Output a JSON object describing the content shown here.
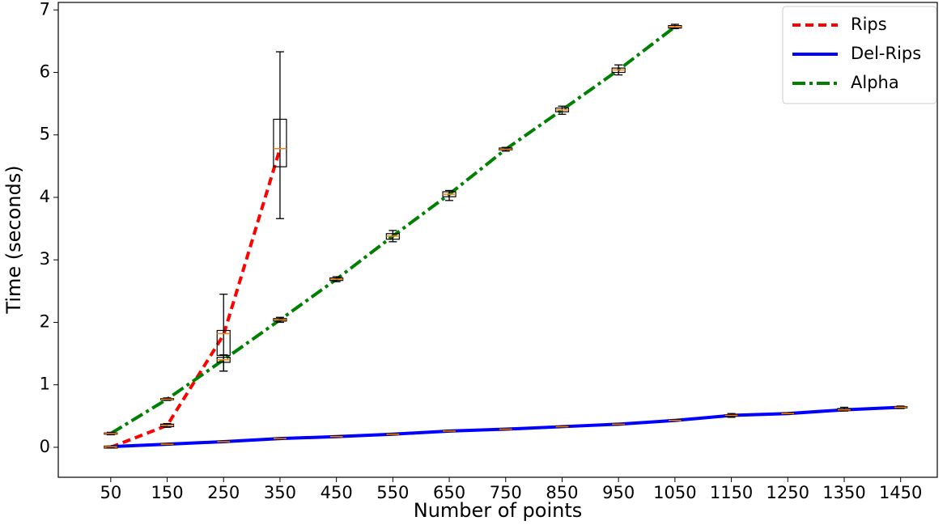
{
  "chart_data": {
    "type": "line",
    "xlabel": "Number of points",
    "ylabel": "Time (seconds)",
    "xlim": [
      -43,
      1515
    ],
    "ylim": [
      -0.48,
      7.12
    ],
    "xticks": [
      50,
      150,
      250,
      350,
      450,
      550,
      650,
      750,
      850,
      950,
      1050,
      1150,
      1250,
      1350,
      1450
    ],
    "yticks": [
      0,
      1,
      2,
      3,
      4,
      5,
      6,
      7
    ],
    "grid": false,
    "legend": "upper right",
    "series": [
      {
        "name": "Rips",
        "color": "#ff0000",
        "dash": "dashed",
        "x": [
          50,
          150,
          250,
          350
        ],
        "values": [
          0.0,
          0.35,
          1.8,
          4.78
        ],
        "boxes": [
          [
            0,
            0,
            0,
            0,
            0.01
          ],
          [
            0.32,
            0.33,
            0.35,
            0.37,
            0.38
          ],
          [
            1.22,
            1.47,
            1.82,
            1.87,
            2.45
          ],
          [
            3.66,
            4.49,
            4.78,
            5.25,
            6.33
          ]
        ]
      },
      {
        "name": "Del-Rips",
        "color": "#0000ff",
        "dash": "solid",
        "x": [
          50,
          150,
          250,
          350,
          450,
          550,
          650,
          750,
          850,
          950,
          1050,
          1150,
          1250,
          1350,
          1450
        ],
        "values": [
          0.01,
          0.05,
          0.09,
          0.14,
          0.17,
          0.21,
          0.26,
          0.29,
          0.33,
          0.37,
          0.43,
          0.51,
          0.54,
          0.6,
          0.64
        ],
        "boxes": [
          [
            0,
            0.01,
            0.01,
            0.02,
            0.02
          ],
          [
            0.04,
            0.05,
            0.05,
            0.06,
            0.06
          ],
          [
            0.08,
            0.09,
            0.09,
            0.1,
            0.1
          ],
          [
            0.13,
            0.14,
            0.14,
            0.15,
            0.15
          ],
          [
            0.16,
            0.17,
            0.17,
            0.18,
            0.18
          ],
          [
            0.2,
            0.21,
            0.21,
            0.22,
            0.22
          ],
          [
            0.25,
            0.26,
            0.26,
            0.27,
            0.27
          ],
          [
            0.28,
            0.29,
            0.29,
            0.3,
            0.3
          ],
          [
            0.32,
            0.33,
            0.33,
            0.34,
            0.34
          ],
          [
            0.36,
            0.37,
            0.37,
            0.38,
            0.38
          ],
          [
            0.42,
            0.43,
            0.43,
            0.44,
            0.44
          ],
          [
            0.48,
            0.5,
            0.51,
            0.52,
            0.54
          ],
          [
            0.53,
            0.54,
            0.54,
            0.55,
            0.55
          ],
          [
            0.58,
            0.59,
            0.6,
            0.62,
            0.64
          ],
          [
            0.62,
            0.63,
            0.64,
            0.65,
            0.66
          ]
        ]
      },
      {
        "name": "Alpha",
        "color": "#008000",
        "dash": "dashdot",
        "x": [
          50,
          150,
          250,
          350,
          450,
          550,
          650,
          750,
          850,
          950,
          1050
        ],
        "values": [
          0.22,
          0.77,
          1.4,
          2.04,
          2.69,
          3.38,
          4.05,
          4.77,
          5.4,
          6.04,
          6.73
        ],
        "boxes": [
          [
            0.2,
            0.21,
            0.22,
            0.23,
            0.24
          ],
          [
            0.75,
            0.76,
            0.77,
            0.78,
            0.79
          ],
          [
            1.22,
            1.36,
            1.4,
            1.44,
            1.48
          ],
          [
            2.0,
            2.02,
            2.04,
            2.06,
            2.08
          ],
          [
            2.65,
            2.67,
            2.69,
            2.71,
            2.73
          ],
          [
            3.29,
            3.33,
            3.38,
            3.42,
            3.47
          ],
          [
            3.95,
            4.01,
            4.05,
            4.09,
            4.11
          ],
          [
            4.74,
            4.76,
            4.77,
            4.79,
            4.8
          ],
          [
            5.33,
            5.37,
            5.4,
            5.43,
            5.46
          ],
          [
            5.96,
            6.0,
            6.04,
            6.07,
            6.12
          ],
          [
            6.7,
            6.71,
            6.73,
            6.75,
            6.77
          ]
        ]
      }
    ]
  }
}
